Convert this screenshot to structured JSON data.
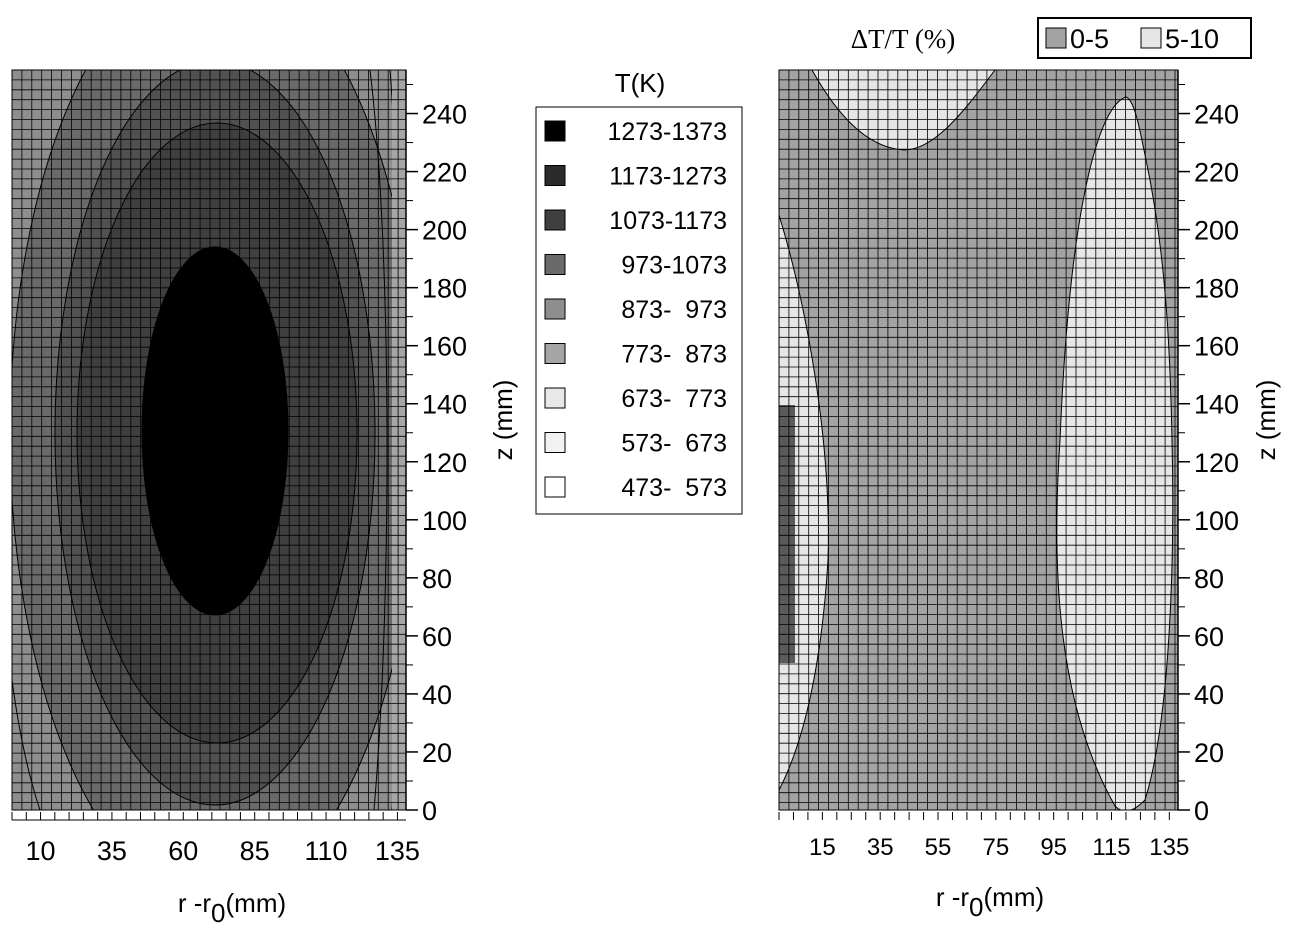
{
  "chart_data": [
    {
      "type": "heatmap",
      "panel": "temperature",
      "legend_title": "T(K)",
      "legend": [
        {
          "label": "1273-1373",
          "color": "#000000"
        },
        {
          "label": "1173-1273",
          "color": "#2b2b2b"
        },
        {
          "label": "1073-1173",
          "color": "#3f3f3f"
        },
        {
          "label": "973-1073",
          "color": "#6a6a6a"
        },
        {
          "label": "873-  973",
          "color": "#8e8e8e"
        },
        {
          "label": "773-  873",
          "color": "#a5a5a5"
        },
        {
          "label": "673-  773",
          "color": "#e8e8e8"
        },
        {
          "label": "573-  673",
          "color": "#f2f2f2"
        },
        {
          "label": "473-  573",
          "color": "#ffffff"
        }
      ],
      "xlabel": "r -r",
      "xlabel_sub": "0",
      "xlabel_unit": "(mm)",
      "ylabel": "z (mm)",
      "xticks": [
        10,
        35,
        60,
        85,
        110,
        135
      ],
      "yticks": [
        0,
        20,
        40,
        60,
        80,
        100,
        120,
        140,
        160,
        180,
        200,
        220,
        240
      ],
      "xlim": [
        0,
        138
      ],
      "ylim": [
        0,
        255
      ],
      "contours": [
        {
          "range": "1273-1373",
          "center_r": 70,
          "center_z": 130,
          "half_width_r": 25,
          "half_height_z": 64
        },
        {
          "range": "1073-1173",
          "center_r": 70,
          "center_z": 130,
          "half_width_r": 38,
          "half_height_z": 107
        },
        {
          "range": "973-1073",
          "center_r": 70,
          "center_z": 130,
          "half_width_r": 55,
          "half_height_z": 165
        }
      ]
    },
    {
      "type": "heatmap",
      "panel": "relative-error",
      "title": "ΔT/T (%)",
      "legend": [
        {
          "label": "0-5",
          "color": "#a3a3a3"
        },
        {
          "label": "5-10",
          "color": "#e6e6e6"
        }
      ],
      "xlabel": "r -r",
      "xlabel_sub": "0",
      "xlabel_unit": "(mm)",
      "ylabel": "z (mm)",
      "xticks": [
        15,
        35,
        55,
        75,
        95,
        115,
        135
      ],
      "yticks": [
        0,
        20,
        40,
        60,
        80,
        100,
        120,
        140,
        160,
        180,
        200,
        220,
        240
      ],
      "xlim": [
        0,
        138
      ],
      "ylim": [
        0,
        255
      ],
      "regions": [
        {
          "range": "5-10",
          "where": "top-center",
          "r_span": [
            12,
            80
          ],
          "z_min": 228
        },
        {
          "range": "5-10",
          "where": "left-edge",
          "r_span": [
            0,
            17
          ],
          "z_span": [
            0,
            205
          ]
        },
        {
          "range": "5-10",
          "where": "right",
          "r_span": [
            95,
            134
          ],
          "z_span": [
            0,
            247
          ]
        }
      ]
    }
  ]
}
